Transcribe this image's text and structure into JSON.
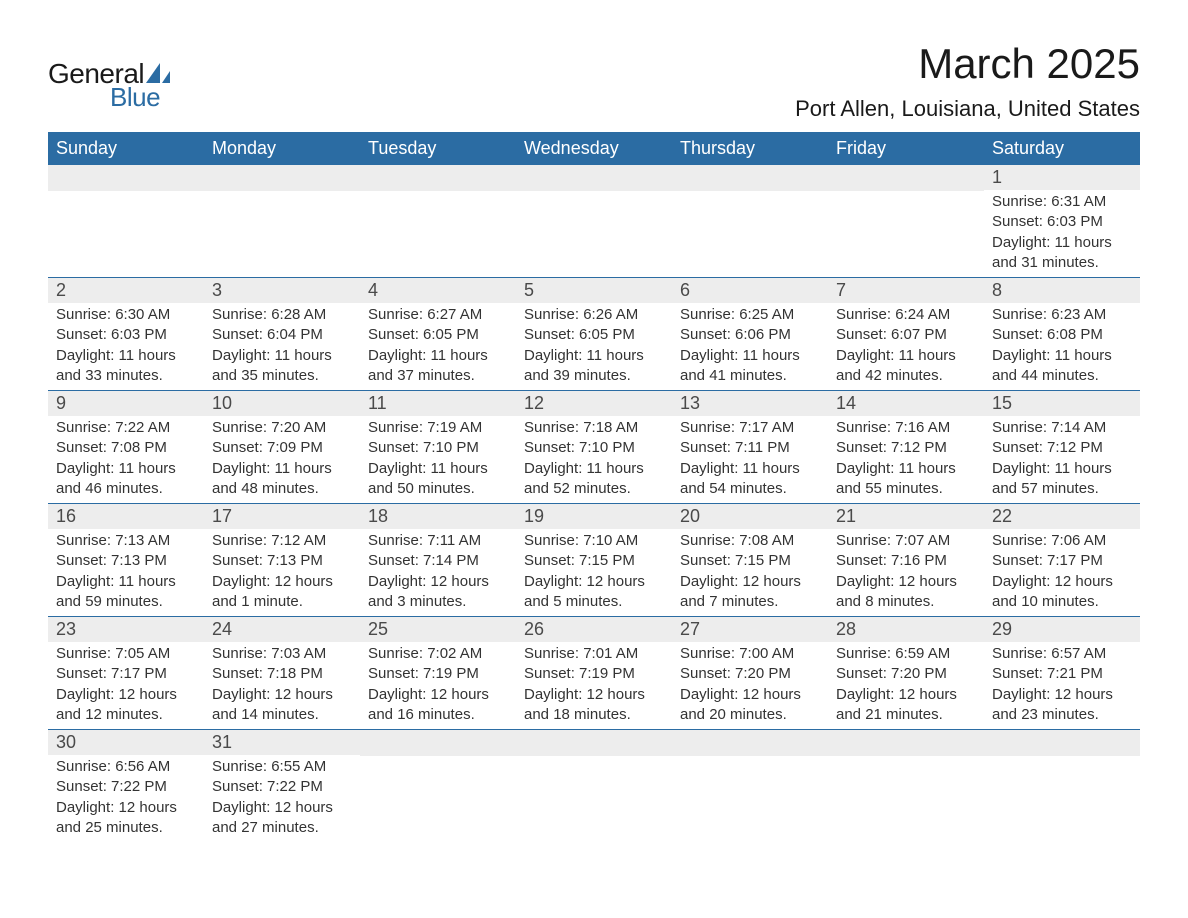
{
  "brand": {
    "general": "General",
    "blue": "Blue",
    "sail_color": "#2b6ca3"
  },
  "title": "March 2025",
  "location": "Port Allen, Louisiana, United States",
  "colors": {
    "header_bg": "#2b6ca3",
    "header_text": "#ffffff",
    "daynum_bg": "#ededed",
    "daynum_text": "#4a4a4a",
    "body_text": "#333333",
    "row_border": "#2b6ca3",
    "page_bg": "#ffffff"
  },
  "weekdays": [
    "Sunday",
    "Monday",
    "Tuesday",
    "Wednesday",
    "Thursday",
    "Friday",
    "Saturday"
  ],
  "weeks": [
    [
      {
        "empty": true
      },
      {
        "empty": true
      },
      {
        "empty": true
      },
      {
        "empty": true
      },
      {
        "empty": true
      },
      {
        "empty": true
      },
      {
        "day": "1",
        "sunrise": "Sunrise: 6:31 AM",
        "sunset": "Sunset: 6:03 PM",
        "daylight": "Daylight: 11 hours and 31 minutes."
      }
    ],
    [
      {
        "day": "2",
        "sunrise": "Sunrise: 6:30 AM",
        "sunset": "Sunset: 6:03 PM",
        "daylight": "Daylight: 11 hours and 33 minutes."
      },
      {
        "day": "3",
        "sunrise": "Sunrise: 6:28 AM",
        "sunset": "Sunset: 6:04 PM",
        "daylight": "Daylight: 11 hours and 35 minutes."
      },
      {
        "day": "4",
        "sunrise": "Sunrise: 6:27 AM",
        "sunset": "Sunset: 6:05 PM",
        "daylight": "Daylight: 11 hours and 37 minutes."
      },
      {
        "day": "5",
        "sunrise": "Sunrise: 6:26 AM",
        "sunset": "Sunset: 6:05 PM",
        "daylight": "Daylight: 11 hours and 39 minutes."
      },
      {
        "day": "6",
        "sunrise": "Sunrise: 6:25 AM",
        "sunset": "Sunset: 6:06 PM",
        "daylight": "Daylight: 11 hours and 41 minutes."
      },
      {
        "day": "7",
        "sunrise": "Sunrise: 6:24 AM",
        "sunset": "Sunset: 6:07 PM",
        "daylight": "Daylight: 11 hours and 42 minutes."
      },
      {
        "day": "8",
        "sunrise": "Sunrise: 6:23 AM",
        "sunset": "Sunset: 6:08 PM",
        "daylight": "Daylight: 11 hours and 44 minutes."
      }
    ],
    [
      {
        "day": "9",
        "sunrise": "Sunrise: 7:22 AM",
        "sunset": "Sunset: 7:08 PM",
        "daylight": "Daylight: 11 hours and 46 minutes."
      },
      {
        "day": "10",
        "sunrise": "Sunrise: 7:20 AM",
        "sunset": "Sunset: 7:09 PM",
        "daylight": "Daylight: 11 hours and 48 minutes."
      },
      {
        "day": "11",
        "sunrise": "Sunrise: 7:19 AM",
        "sunset": "Sunset: 7:10 PM",
        "daylight": "Daylight: 11 hours and 50 minutes."
      },
      {
        "day": "12",
        "sunrise": "Sunrise: 7:18 AM",
        "sunset": "Sunset: 7:10 PM",
        "daylight": "Daylight: 11 hours and 52 minutes."
      },
      {
        "day": "13",
        "sunrise": "Sunrise: 7:17 AM",
        "sunset": "Sunset: 7:11 PM",
        "daylight": "Daylight: 11 hours and 54 minutes."
      },
      {
        "day": "14",
        "sunrise": "Sunrise: 7:16 AM",
        "sunset": "Sunset: 7:12 PM",
        "daylight": "Daylight: 11 hours and 55 minutes."
      },
      {
        "day": "15",
        "sunrise": "Sunrise: 7:14 AM",
        "sunset": "Sunset: 7:12 PM",
        "daylight": "Daylight: 11 hours and 57 minutes."
      }
    ],
    [
      {
        "day": "16",
        "sunrise": "Sunrise: 7:13 AM",
        "sunset": "Sunset: 7:13 PM",
        "daylight": "Daylight: 11 hours and 59 minutes."
      },
      {
        "day": "17",
        "sunrise": "Sunrise: 7:12 AM",
        "sunset": "Sunset: 7:13 PM",
        "daylight": "Daylight: 12 hours and 1 minute."
      },
      {
        "day": "18",
        "sunrise": "Sunrise: 7:11 AM",
        "sunset": "Sunset: 7:14 PM",
        "daylight": "Daylight: 12 hours and 3 minutes."
      },
      {
        "day": "19",
        "sunrise": "Sunrise: 7:10 AM",
        "sunset": "Sunset: 7:15 PM",
        "daylight": "Daylight: 12 hours and 5 minutes."
      },
      {
        "day": "20",
        "sunrise": "Sunrise: 7:08 AM",
        "sunset": "Sunset: 7:15 PM",
        "daylight": "Daylight: 12 hours and 7 minutes."
      },
      {
        "day": "21",
        "sunrise": "Sunrise: 7:07 AM",
        "sunset": "Sunset: 7:16 PM",
        "daylight": "Daylight: 12 hours and 8 minutes."
      },
      {
        "day": "22",
        "sunrise": "Sunrise: 7:06 AM",
        "sunset": "Sunset: 7:17 PM",
        "daylight": "Daylight: 12 hours and 10 minutes."
      }
    ],
    [
      {
        "day": "23",
        "sunrise": "Sunrise: 7:05 AM",
        "sunset": "Sunset: 7:17 PM",
        "daylight": "Daylight: 12 hours and 12 minutes."
      },
      {
        "day": "24",
        "sunrise": "Sunrise: 7:03 AM",
        "sunset": "Sunset: 7:18 PM",
        "daylight": "Daylight: 12 hours and 14 minutes."
      },
      {
        "day": "25",
        "sunrise": "Sunrise: 7:02 AM",
        "sunset": "Sunset: 7:19 PM",
        "daylight": "Daylight: 12 hours and 16 minutes."
      },
      {
        "day": "26",
        "sunrise": "Sunrise: 7:01 AM",
        "sunset": "Sunset: 7:19 PM",
        "daylight": "Daylight: 12 hours and 18 minutes."
      },
      {
        "day": "27",
        "sunrise": "Sunrise: 7:00 AM",
        "sunset": "Sunset: 7:20 PM",
        "daylight": "Daylight: 12 hours and 20 minutes."
      },
      {
        "day": "28",
        "sunrise": "Sunrise: 6:59 AM",
        "sunset": "Sunset: 7:20 PM",
        "daylight": "Daylight: 12 hours and 21 minutes."
      },
      {
        "day": "29",
        "sunrise": "Sunrise: 6:57 AM",
        "sunset": "Sunset: 7:21 PM",
        "daylight": "Daylight: 12 hours and 23 minutes."
      }
    ],
    [
      {
        "day": "30",
        "sunrise": "Sunrise: 6:56 AM",
        "sunset": "Sunset: 7:22 PM",
        "daylight": "Daylight: 12 hours and 25 minutes."
      },
      {
        "day": "31",
        "sunrise": "Sunrise: 6:55 AM",
        "sunset": "Sunset: 7:22 PM",
        "daylight": "Daylight: 12 hours and 27 minutes."
      },
      {
        "empty": true
      },
      {
        "empty": true
      },
      {
        "empty": true
      },
      {
        "empty": true
      },
      {
        "empty": true
      }
    ]
  ]
}
